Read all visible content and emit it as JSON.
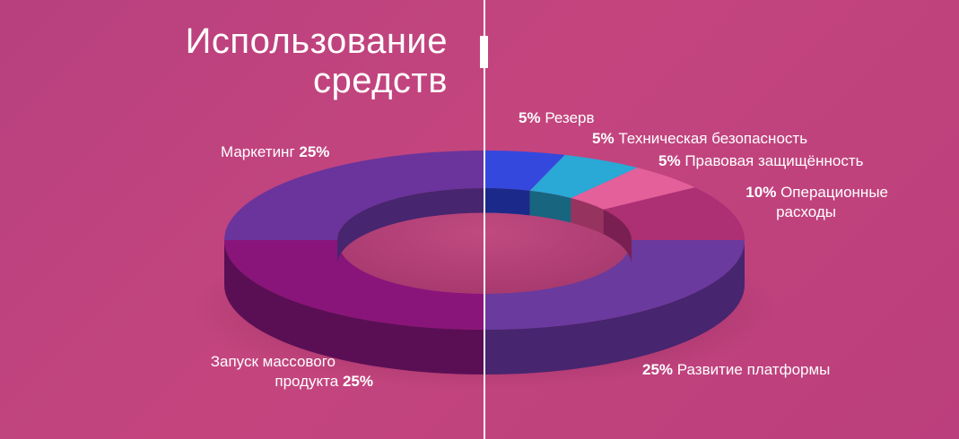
{
  "title_line1": "Использование",
  "title_line2": "средств",
  "chart_data": {
    "type": "pie",
    "style": "3d-donut",
    "title": "Использование средств",
    "unit": "%",
    "categories": [
      "Резерв",
      "Техническая безопасность",
      "Правовая защищённость",
      "Операционные расходы",
      "Развитие платформы",
      "Запуск массового продукта",
      "Маркетинг"
    ],
    "values": [
      5,
      5,
      5,
      10,
      25,
      25,
      25
    ],
    "colors": [
      "#3548dd",
      "#2aa8d6",
      "#e3609a",
      "#ad2f74",
      "#6a3a9e",
      "#8a157a",
      "#6a349c"
    ],
    "side_colors": [
      "#1b2a8a",
      "#17657f",
      "#96335f",
      "#7a1f51",
      "#47256f",
      "#5a0f55",
      "#47256f"
    ]
  },
  "labels": {
    "reserve": {
      "percent": "5%",
      "name": "Резерв"
    },
    "tech": {
      "percent": "5%",
      "name": "Техническая безопасность"
    },
    "legal": {
      "percent": "5%",
      "name": "Правовая защищённость"
    },
    "ops": {
      "percent": "10%",
      "name_line1": "Операционные",
      "name_line2": "расходы"
    },
    "platform": {
      "percent": "25%",
      "name": "Развитие платформы"
    },
    "mass": {
      "name_line1": "Запуск массового",
      "name_line2": "продукта",
      "percent": "25%"
    },
    "marketing": {
      "name": "Маркетинг",
      "percent": "25%"
    }
  }
}
